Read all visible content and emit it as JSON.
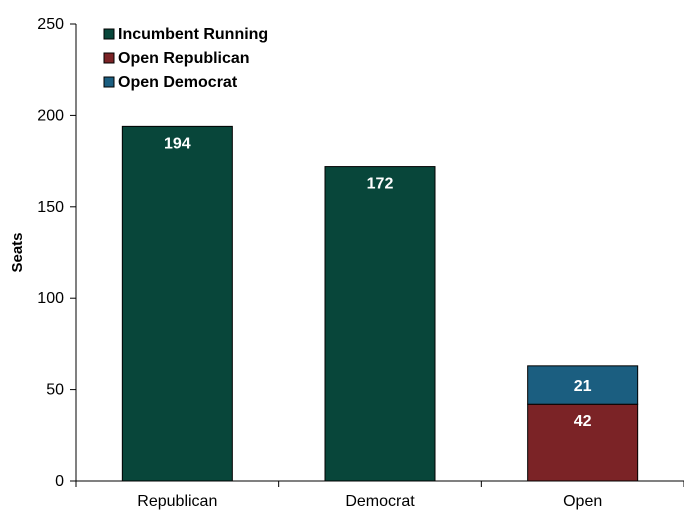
{
  "chart_data": {
    "type": "bar",
    "stacked": true,
    "categories": [
      "Republican",
      "Democrat",
      "Open"
    ],
    "series": [
      {
        "name": "Incumbent Running",
        "color": "#08463a",
        "values": [
          194,
          172,
          0
        ]
      },
      {
        "name": "Open Republican",
        "color": "#7b2326",
        "values": [
          0,
          0,
          42
        ]
      },
      {
        "name": "Open Democrat",
        "color": "#1b5e80",
        "values": [
          0,
          0,
          21
        ]
      }
    ],
    "ylabel": "Seats",
    "ylim": [
      0,
      250
    ],
    "yticks": [
      0,
      50,
      100,
      150,
      200,
      250
    ],
    "legend_position": "top-left",
    "grid": false
  }
}
